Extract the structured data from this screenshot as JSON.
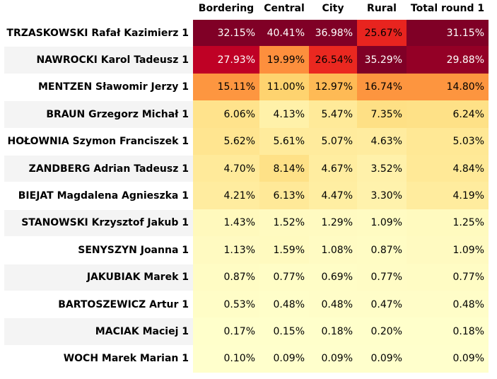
{
  "chart_data": {
    "type": "heatmap",
    "title": "",
    "columns": [
      "Bordering",
      "Central",
      "City",
      "Rural",
      "Total round 1"
    ],
    "rows": [
      {
        "name": "TRZASKOWSKI Rafał Kazimierz 1",
        "values": [
          "32.15%",
          "40.41%",
          "36.98%",
          "25.67%",
          "31.15%"
        ]
      },
      {
        "name": "NAWROCKI Karol Tadeusz 1",
        "values": [
          "27.93%",
          "19.99%",
          "26.54%",
          "35.29%",
          "29.88%"
        ]
      },
      {
        "name": "MENTZEN Sławomir Jerzy 1",
        "values": [
          "15.11%",
          "11.00%",
          "12.97%",
          "16.74%",
          "14.80%"
        ]
      },
      {
        "name": "BRAUN Grzegorz Michał 1",
        "values": [
          "6.06%",
          "4.13%",
          "5.47%",
          "7.35%",
          "6.24%"
        ]
      },
      {
        "name": "HOŁOWNIA Szymon Franciszek 1",
        "values": [
          "5.62%",
          "5.61%",
          "5.07%",
          "4.63%",
          "5.03%"
        ]
      },
      {
        "name": "ZANDBERG Adrian Tadeusz 1",
        "values": [
          "4.70%",
          "8.14%",
          "4.67%",
          "3.52%",
          "4.84%"
        ]
      },
      {
        "name": "BIEJAT Magdalena Agnieszka 1",
        "values": [
          "4.21%",
          "6.13%",
          "4.47%",
          "3.30%",
          "4.19%"
        ]
      },
      {
        "name": "STANOWSKI Krzysztof Jakub 1",
        "values": [
          "1.43%",
          "1.52%",
          "1.29%",
          "1.09%",
          "1.25%"
        ]
      },
      {
        "name": "SENYSZYN Joanna 1",
        "values": [
          "1.13%",
          "1.59%",
          "1.08%",
          "0.87%",
          "1.09%"
        ]
      },
      {
        "name": "JAKUBIAK Marek 1",
        "values": [
          "0.87%",
          "0.77%",
          "0.69%",
          "0.77%",
          "0.77%"
        ]
      },
      {
        "name": "BARTOSZEWICZ Artur 1",
        "values": [
          "0.53%",
          "0.48%",
          "0.48%",
          "0.47%",
          "0.48%"
        ]
      },
      {
        "name": "MACIAK Maciej 1",
        "values": [
          "0.17%",
          "0.15%",
          "0.18%",
          "0.20%",
          "0.18%"
        ]
      },
      {
        "name": "WOCH Marek Marian 1",
        "values": [
          "0.10%",
          "0.09%",
          "0.09%",
          "0.09%",
          "0.09%"
        ]
      }
    ],
    "color_scale": "YlOrRd",
    "legend": "none",
    "grid": false
  }
}
